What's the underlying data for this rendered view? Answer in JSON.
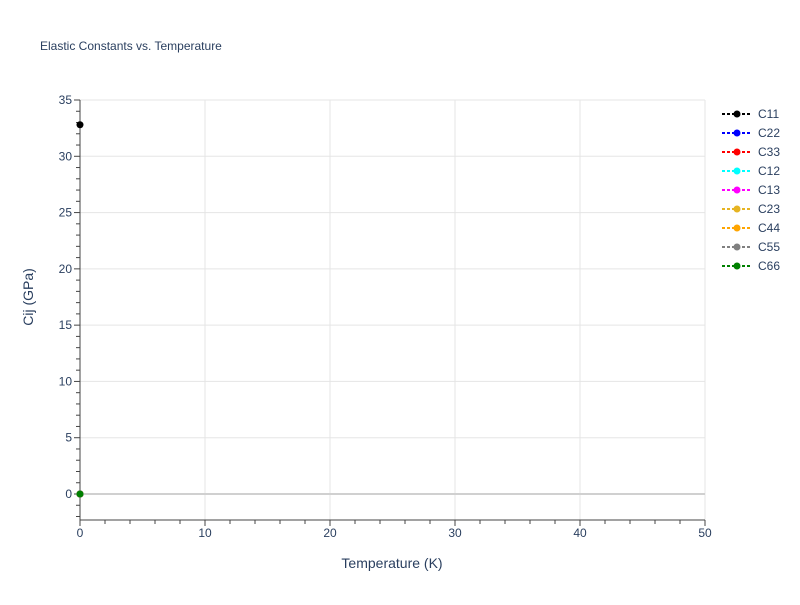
{
  "chart_data": {
    "type": "line",
    "title": "Elastic Constants vs. Temperature",
    "xlabel": "Temperature (K)",
    "ylabel": "Cij (GPa)",
    "xlim": [
      0,
      50
    ],
    "ylim": [
      -2.3,
      35
    ],
    "xticks": [
      0,
      10,
      20,
      30,
      40,
      50
    ],
    "yticks": [
      0,
      5,
      10,
      15,
      20,
      25,
      30,
      35
    ],
    "grid": true,
    "legend_position": "right",
    "series": [
      {
        "name": "C11",
        "color": "#000000",
        "x": [
          0
        ],
        "y": [
          32.8
        ]
      },
      {
        "name": "C22",
        "color": "#0000ff",
        "x": [
          0
        ],
        "y": [
          0
        ]
      },
      {
        "name": "C33",
        "color": "#ff0000",
        "x": [
          0
        ],
        "y": [
          0
        ]
      },
      {
        "name": "C12",
        "color": "#00ffff",
        "x": [
          0
        ],
        "y": [
          0
        ]
      },
      {
        "name": "C13",
        "color": "#ff00ff",
        "x": [
          0
        ],
        "y": [
          0
        ]
      },
      {
        "name": "C23",
        "color": "#e6b422",
        "x": [
          0
        ],
        "y": [
          0
        ]
      },
      {
        "name": "C44",
        "color": "#ffa500",
        "x": [
          0
        ],
        "y": [
          0
        ]
      },
      {
        "name": "C55",
        "color": "#808080",
        "x": [
          0
        ],
        "y": [
          0
        ]
      },
      {
        "name": "C66",
        "color": "#008000",
        "x": [
          0
        ],
        "y": [
          0
        ]
      }
    ]
  }
}
